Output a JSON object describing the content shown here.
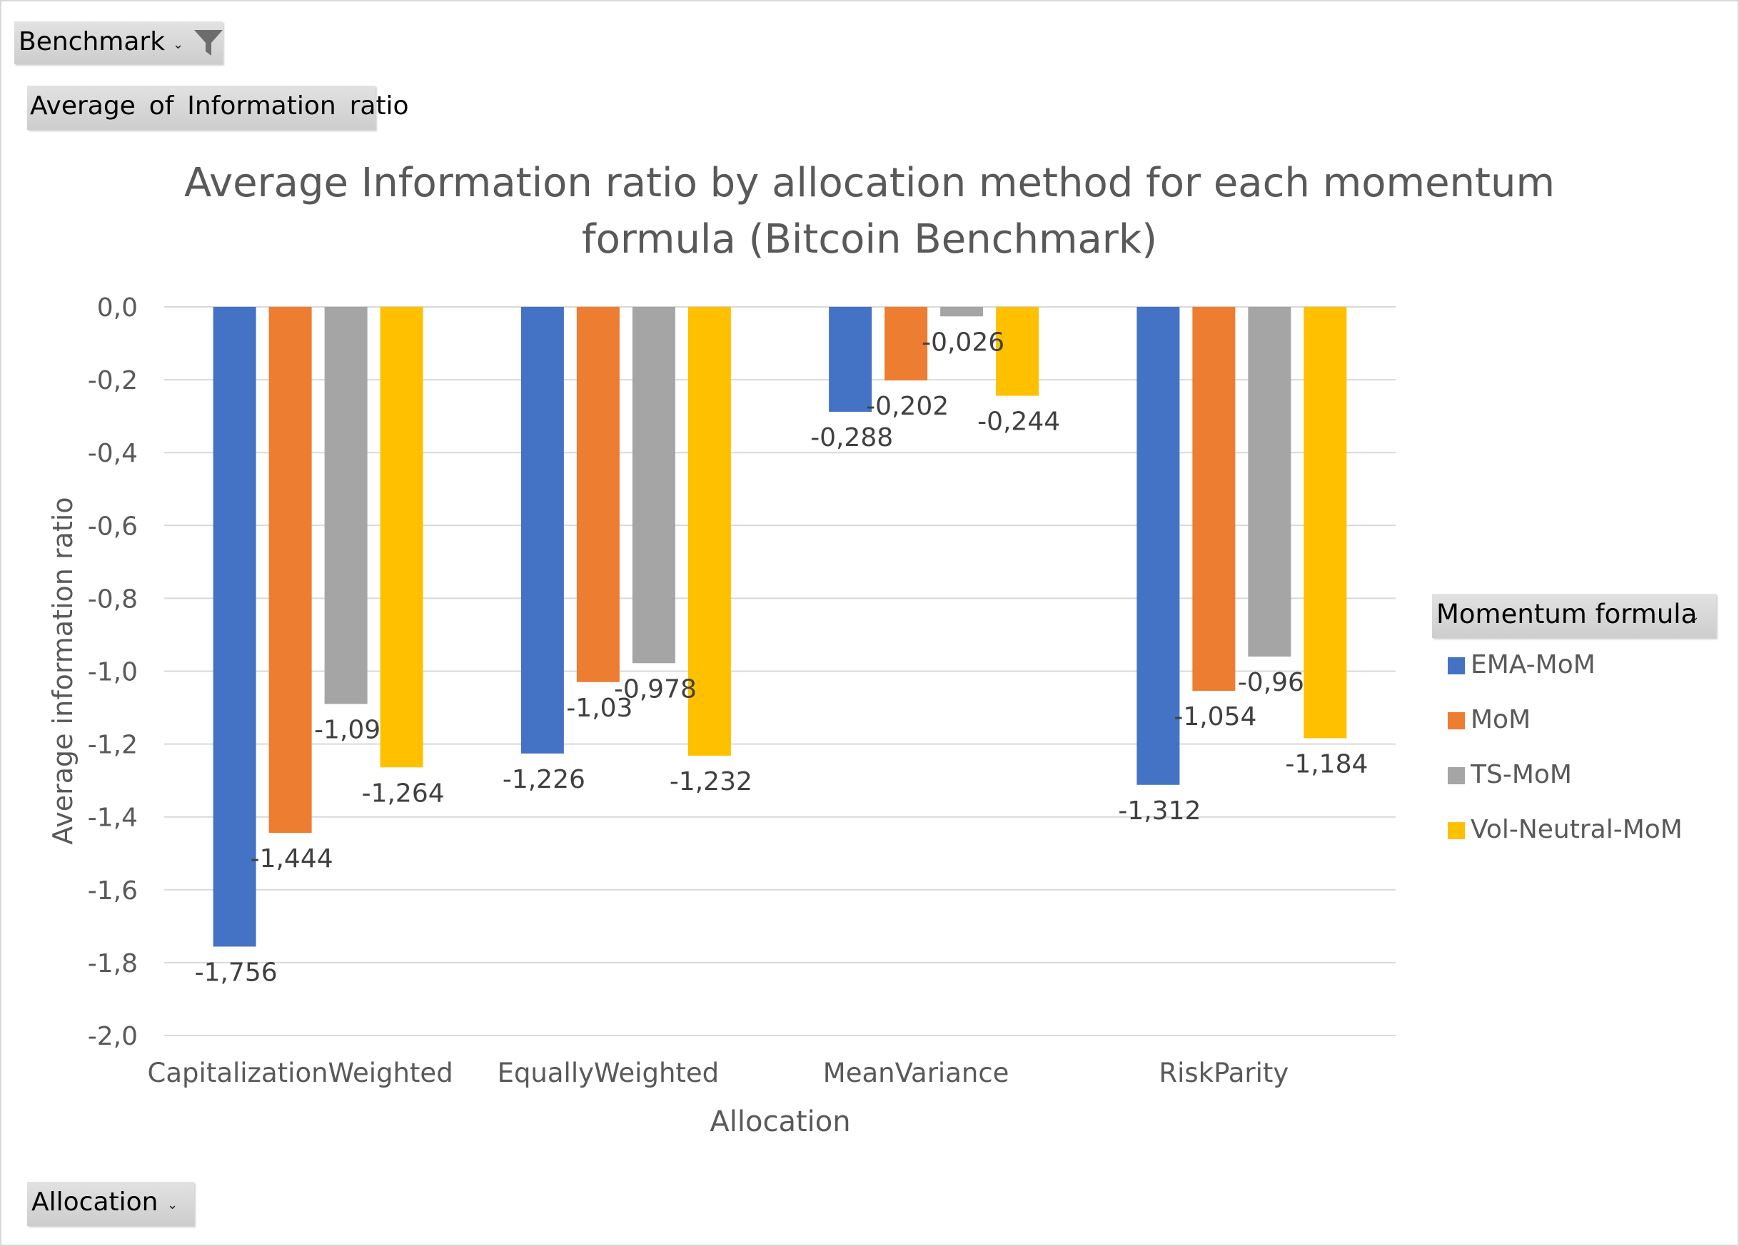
{
  "filters": {
    "report_filter": "Benchmark",
    "values_field": "Average  of  Information  ratio",
    "axis_field": "Allocation",
    "legend_field": "Momentum formula"
  },
  "icons": {
    "filter": "funnel-filter-icon",
    "dropdown": "dropdown-arrow-icon"
  },
  "chart_data": {
    "type": "bar",
    "title": "Average Information ratio by allocation method for each momentum formula (Bitcoin Benchmark)",
    "title_lines": [
      "Average Information ratio by allocation method for each momentum",
      "formula (Bitcoin Benchmark)"
    ],
    "xlabel": "Allocation",
    "ylabel": "Average information ratio",
    "ylim": [
      -2.0,
      0.0
    ],
    "ytick_values": [
      0.0,
      -0.2,
      -0.4,
      -0.6,
      -0.8,
      -1.0,
      -1.2,
      -1.4,
      -1.6,
      -1.8,
      -2.0
    ],
    "ytick_labels": [
      "0,0",
      "-0,2",
      "-0,4",
      "-0,6",
      "-0,8",
      "-1,0",
      "-1,2",
      "-1,4",
      "-1,6",
      "-1,8",
      "-2,0"
    ],
    "grid": true,
    "legend_position": "right",
    "categories": [
      "CapitalizationWeighted",
      "EquallyWeighted",
      "MeanVariance",
      "RiskParity"
    ],
    "series": [
      {
        "name": "EMA-MoM",
        "color": "#4472C4",
        "values": [
          -1.756,
          -1.226,
          -0.288,
          -1.312
        ],
        "labels": [
          "-1,756",
          "-1,226",
          "-0,288",
          "-1,312"
        ]
      },
      {
        "name": "MoM",
        "color": "#ED7D31",
        "values": [
          -1.444,
          -1.03,
          -0.202,
          -1.054
        ],
        "labels": [
          "-1,444",
          "-1,03",
          "-0,202",
          "-1,054"
        ]
      },
      {
        "name": "TS-MoM",
        "color": "#A5A5A5",
        "values": [
          -1.09,
          -0.978,
          -0.026,
          -0.96
        ],
        "labels": [
          "-1,09",
          "-0,978",
          "-0,026",
          "-0,96"
        ]
      },
      {
        "name": "Vol-Neutral-MoM",
        "color": "#FFC000",
        "values": [
          -1.264,
          -1.232,
          -0.244,
          -1.184
        ],
        "labels": [
          "-1,264",
          "-1,232",
          "-0,244",
          "-1,184"
        ]
      }
    ]
  }
}
